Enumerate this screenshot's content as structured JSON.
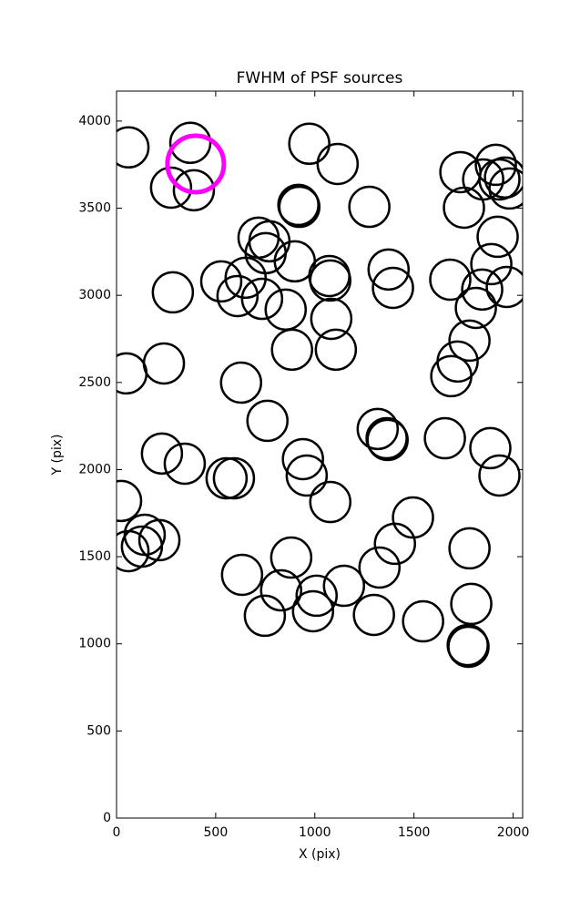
{
  "chart_data": {
    "type": "scatter",
    "title": "FWHM of PSF sources",
    "x_label": "X (pix)",
    "y_label": "Y (pix)",
    "xlim": [
      0,
      2048
    ],
    "ylim": [
      0,
      4172
    ],
    "xticks": [
      0,
      500,
      1000,
      1500,
      2000
    ],
    "yticks": [
      0,
      500,
      1000,
      1500,
      2000,
      2500,
      3000,
      3500,
      4000
    ],
    "grid": false,
    "series": [
      {
        "color": "#000000",
        "x": [
          60,
          372,
          275,
          390,
          972,
          1115,
          917,
          922,
          1275,
          716,
          771,
          752,
          899,
          528,
          651,
          610,
          734,
          284,
          853,
          1073,
          1078,
          1083,
          885,
          1106,
          1372,
          1394,
          1683,
          1734,
          1752,
          1849,
          1913,
          1931,
          1959,
          1982,
          1922,
          1890,
          1844,
          1812,
          1968,
          1780,
          1720,
          1688,
          50,
          239,
          628,
          761,
          1317,
          1362,
          1367,
          1656,
          1885,
          1931,
          229,
          344,
          940,
          959,
          555,
          592,
          1078,
          23,
          142,
          128,
          60,
          216,
          1495,
          1404,
          1326,
          881,
          633,
          830,
          1009,
          991,
          1147,
          748,
          1298,
          1546,
          1780,
          1789,
          1771,
          1775
        ],
        "values": [
          3849,
          3875,
          3618,
          3603,
          3870,
          3754,
          3519,
          3508,
          3508,
          3331,
          3310,
          3242,
          3195,
          3080,
          3101,
          2996,
          2980,
          3017,
          2918,
          3111,
          3085,
          2865,
          2688,
          2688,
          3148,
          3043,
          3090,
          3707,
          3503,
          3665,
          3749,
          3665,
          3676,
          3613,
          3336,
          3179,
          3033,
          2928,
          3048,
          2740,
          2620,
          2536,
          2552,
          2609,
          2499,
          2280,
          2233,
          2180,
          2170,
          2180,
          2123,
          1966,
          2092,
          2034,
          2060,
          1966,
          1950,
          1950,
          1814,
          1820,
          1626,
          1558,
          1532,
          1595,
          1725,
          1574,
          1438,
          1495,
          1396,
          1307,
          1276,
          1187,
          1333,
          1161,
          1166,
          1129,
          1548,
          1229,
          993,
          983
        ]
      },
      {
        "color": "#ff00ff",
        "x": [
          399
        ],
        "values": [
          3754
        ]
      }
    ]
  }
}
